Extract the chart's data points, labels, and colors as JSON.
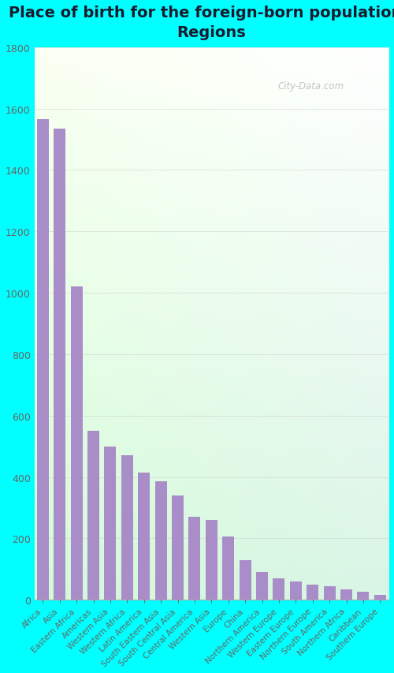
{
  "title": "Place of birth for the foreign-born population -\nRegions",
  "categories": [
    "Africa",
    "Asia",
    "Eastern Africa",
    "Americas",
    "Western Asia",
    "Western Africa",
    "Latin America",
    "South Eastern Asia",
    "South Central Asia",
    "Central America",
    "Western Asia",
    "Europe",
    "China",
    "Northern America",
    "Western Europe",
    "Eastern Europe",
    "Northern Europe",
    "South America",
    "Northern Africa",
    "Caribbean",
    "Southern Europe"
  ],
  "values": [
    1565,
    1535,
    1020,
    550,
    500,
    470,
    415,
    385,
    340,
    270,
    260,
    205,
    130,
    90,
    70,
    60,
    50,
    45,
    35,
    25,
    15
  ],
  "bar_color": "#a98dc8",
  "fig_bg": "#00FFFF",
  "ylim": [
    0,
    1800
  ],
  "yticks": [
    0,
    200,
    400,
    600,
    800,
    1000,
    1200,
    1400,
    1600,
    1800
  ],
  "title_fontsize": 14,
  "title_color": "#1a1a2e",
  "tick_color": "#666666",
  "watermark": "City-Data.com",
  "grid_color": "#cccccc"
}
